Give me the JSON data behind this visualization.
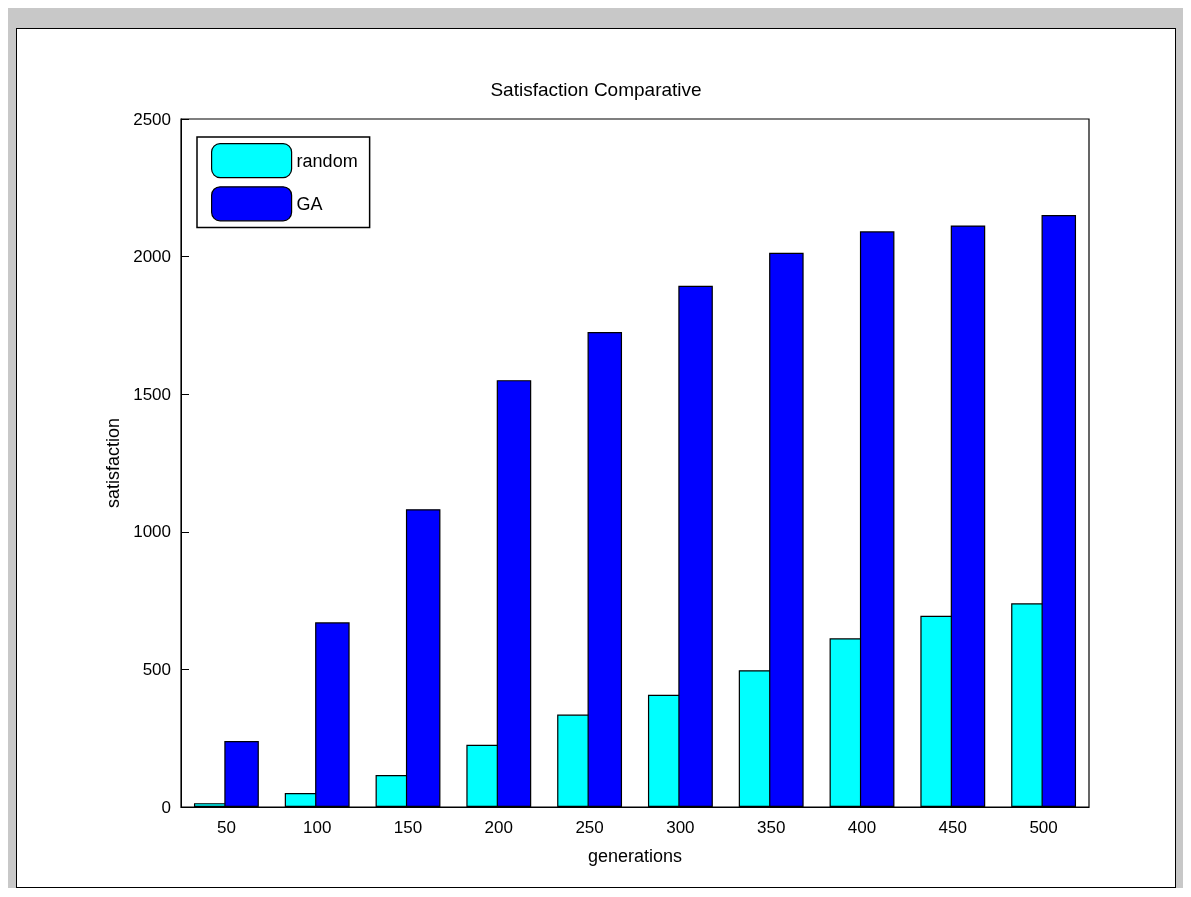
{
  "chart_data": {
    "type": "bar",
    "title": "Satisfaction Comparative",
    "xlabel": "generations",
    "ylabel": "satisfaction",
    "categories": [
      "50",
      "100",
      "150",
      "200",
      "250",
      "300",
      "350",
      "400",
      "450",
      "500"
    ],
    "series": [
      {
        "name": "random",
        "color": "#00ffff",
        "values": [
          14,
          51,
          116,
          226,
          336,
          408,
          497,
          613,
          695,
          740
        ]
      },
      {
        "name": "GA",
        "color": "#0000ff",
        "values": [
          240,
          671,
          1082,
          1551,
          1726,
          1894,
          2014,
          2092,
          2113,
          2151
        ]
      }
    ],
    "ylim": [
      0,
      2500
    ],
    "yticks": [
      0,
      500,
      1000,
      1500,
      2000,
      2500
    ],
    "grid": false,
    "legend": "top left"
  }
}
